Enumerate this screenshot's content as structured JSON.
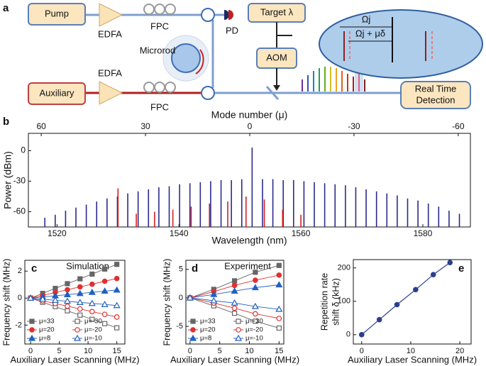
{
  "panel_labels": [
    "a",
    "b",
    "c",
    "d",
    "e"
  ],
  "diagram": {
    "pump": "Pump",
    "edfa_top": "EDFA",
    "fpc_top": "FPC",
    "pd": "PD",
    "microrod": "Microrod",
    "target": "Target λ",
    "aom": "AOM",
    "auxiliary": "Auxiliary",
    "edfa_bottom": "EDFA",
    "fpc_bottom": "FPC",
    "detection": [
      "Real Time",
      "Detection"
    ],
    "omega": "Ωj",
    "omega_shift": "Ωj + μδ"
  },
  "chart_data": [
    {
      "type": "stem",
      "xlabel": "Wavelength (nm)",
      "ylabel": "Power (dBm)",
      "x2label": "Mode number (μ)",
      "xlim": [
        1515.3,
        1587.8
      ],
      "xticks": [
        1520,
        1540,
        1560,
        1580
      ],
      "x2lim": [
        63.7,
        -63.5
      ],
      "x2ticks": [
        60,
        30,
        0,
        -30,
        -60
      ],
      "ylim": [
        -75,
        17
      ],
      "yticks": [
        0,
        -30,
        -60
      ],
      "series": [
        {
          "color": "#2a2a8c",
          "x": [
            1518.0,
            1519.7,
            1521.4,
            1523.1,
            1524.8,
            1526.5,
            1528.2,
            1529.9,
            1531.6,
            1533.3,
            1535.0,
            1536.7,
            1538.4,
            1540.1,
            1541.8,
            1543.5,
            1545.2,
            1546.9,
            1548.6,
            1550.3,
            1552.0,
            1553.7,
            1555.4,
            1557.1,
            1558.8,
            1560.5,
            1562.2,
            1563.9,
            1565.6,
            1567.3,
            1569.0,
            1570.7,
            1572.4,
            1574.1,
            1575.8,
            1577.5,
            1579.2,
            1580.9,
            1582.6,
            1584.3,
            1586.0
          ],
          "values": [
            -66,
            -63,
            -59,
            -56,
            -53,
            -50,
            -47,
            -45,
            -42,
            -40,
            -38,
            -36,
            -35,
            -33,
            -32,
            -31,
            -30,
            -29,
            -29,
            -28,
            3,
            -28,
            -28,
            -29,
            -29,
            -30,
            -31,
            -32,
            -33,
            -34,
            -36,
            -38,
            -40,
            -42,
            -44,
            -47,
            -49,
            -52,
            -55,
            -59,
            -62
          ]
        },
        {
          "color": "#d42020",
          "x": [
            1530,
            1533,
            1536,
            1539,
            1542,
            1545,
            1548,
            1551,
            1554,
            1557,
            1560
          ],
          "values": [
            -37,
            -62,
            -60,
            -58,
            -55,
            -52,
            -50,
            -45,
            -48,
            -58,
            -63
          ]
        }
      ]
    },
    {
      "type": "line",
      "title": "Simulation",
      "xlabel": "Auxiliary Laser Scanning (MHz)",
      "ylabel": "Frequency shift (MHz)",
      "xlim": [
        -1,
        16.4
      ],
      "xticks": [
        0,
        5,
        10,
        15
      ],
      "ylim": [
        -3.4,
        2.8
      ],
      "yticks": [
        -2,
        0,
        2
      ],
      "legend": "lower left",
      "x": [
        0,
        2.1,
        4.3,
        6.4,
        8.6,
        10.7,
        12.9,
        15
      ],
      "series": [
        {
          "name": "μ=33",
          "color": "#666666",
          "marker": "square",
          "filled": true,
          "values": [
            0,
            0.35,
            0.72,
            1.07,
            1.43,
            1.78,
            2.15,
            2.5
          ]
        },
        {
          "name": "μ=-30",
          "color": "#666666",
          "marker": "square",
          "filled": false,
          "values": [
            0,
            -0.31,
            -0.63,
            -0.94,
            -1.26,
            -1.57,
            -1.89,
            -2.2
          ]
        },
        {
          "name": "μ=20",
          "color": "#e03030",
          "marker": "circle",
          "filled": true,
          "values": [
            0,
            0.2,
            0.42,
            0.62,
            0.83,
            1.03,
            1.25,
            1.45
          ]
        },
        {
          "name": "μ=-20",
          "color": "#e03030",
          "marker": "circle",
          "filled": false,
          "values": [
            0,
            -0.2,
            -0.4,
            -0.6,
            -0.8,
            -1,
            -1.2,
            -1.4
          ]
        },
        {
          "name": "μ=8",
          "color": "#2060c0",
          "marker": "triangle",
          "filled": true,
          "values": [
            0,
            0.08,
            0.17,
            0.26,
            0.34,
            0.43,
            0.52,
            0.6
          ]
        },
        {
          "name": "μ=-10",
          "color": "#2060c0",
          "marker": "triangle",
          "filled": false,
          "values": [
            0,
            -0.08,
            -0.16,
            -0.23,
            -0.32,
            -0.39,
            -0.47,
            -0.55
          ]
        }
      ]
    },
    {
      "type": "line",
      "title": "Experiment",
      "xlabel": "Auxiliary Laser Scanning (MHz)",
      "ylabel": "Frequency shift (MHz)",
      "xlim": [
        -0.7,
        15.8
      ],
      "xticks": [
        0,
        5,
        10,
        15
      ],
      "ylim": [
        -8.1,
        6.6
      ],
      "yticks": [
        -5,
        0,
        5
      ],
      "legend": "lower left",
      "x": [
        0,
        4,
        7.5,
        11,
        15
      ],
      "series": [
        {
          "name": "μ=33",
          "color": "#666666",
          "marker": "square",
          "filled": true,
          "values": [
            0,
            1.5,
            3,
            4.5,
            5.7
          ]
        },
        {
          "name": "μ=-30",
          "color": "#666666",
          "marker": "square",
          "filled": false,
          "values": [
            0,
            -1.4,
            -2.7,
            -4.1,
            -5.3
          ]
        },
        {
          "name": "μ=20",
          "color": "#e03030",
          "marker": "circle",
          "filled": true,
          "values": [
            0,
            1.1,
            2.2,
            3.1,
            4.0
          ]
        },
        {
          "name": "μ=-20",
          "color": "#e03030",
          "marker": "circle",
          "filled": false,
          "values": [
            0,
            -0.9,
            -1.8,
            -2.8,
            -3.6
          ]
        },
        {
          "name": "μ=8",
          "color": "#2060c0",
          "marker": "triangle",
          "filled": true,
          "values": [
            0,
            0.6,
            1.2,
            1.8,
            2.3
          ]
        },
        {
          "name": "μ=-10",
          "color": "#2060c0",
          "marker": "triangle",
          "filled": false,
          "values": [
            0,
            -0.5,
            -0.9,
            -1.5,
            -2
          ]
        }
      ]
    },
    {
      "type": "line",
      "xlabel": "Auxiliary Laser Scanning (MHz)",
      "ylabel": [
        "Repetition rate",
        "shift  δ (kHz)"
      ],
      "xlim": [
        -1.7,
        22.3
      ],
      "xticks": [
        0,
        10,
        20
      ],
      "ylim": [
        -28,
        225
      ],
      "yticks": [
        0,
        100,
        200
      ],
      "x": [
        0,
        3.6,
        7.2,
        11,
        14.6,
        18
      ],
      "series": [
        {
          "color": "#2c3e90",
          "marker": "circle",
          "filled": true,
          "values": [
            0,
            45,
            90,
            135,
            180,
            216
          ]
        }
      ]
    }
  ]
}
